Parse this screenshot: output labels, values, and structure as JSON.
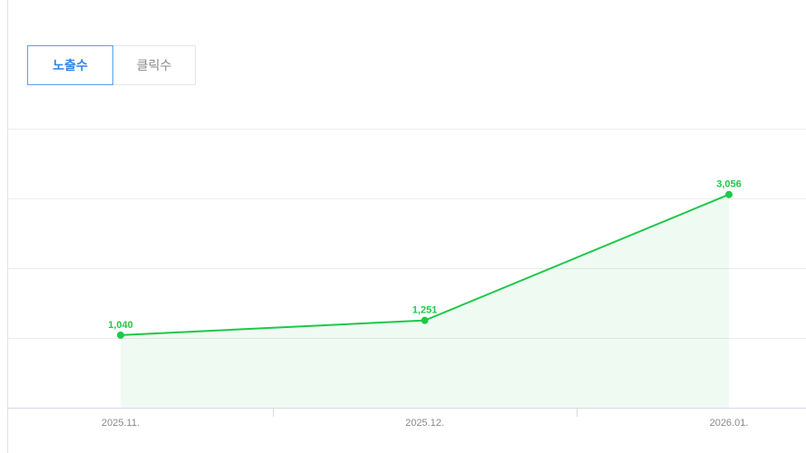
{
  "tabs": [
    "노출수",
    "클릭수"
  ],
  "chart_data": {
    "type": "line",
    "categories": [
      "2025.11.",
      "2025.12.",
      "2026.01."
    ],
    "values": [
      1040,
      1251,
      3056
    ],
    "value_labels": [
      "1,040",
      "1,251",
      "3,056"
    ],
    "color": "#1ec84a",
    "ylim": [
      0,
      4000
    ],
    "yticks": [
      0,
      1000,
      2000,
      3000,
      4000
    ],
    "grid": true
  }
}
